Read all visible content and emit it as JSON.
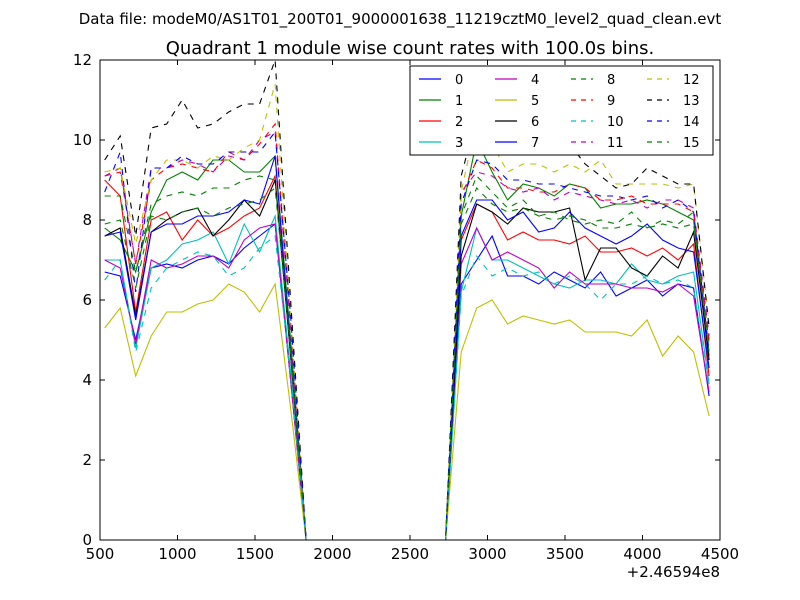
{
  "suptitle": "Data file: modeM0/AS1T01_200T01_9000001638_11219cztM0_level2_quad_clean.evt",
  "chart_data": {
    "type": "line",
    "title": "Quadrant 1 module wise count rates with 100.0s bins.",
    "xlabel": "",
    "ylabel": "",
    "x_offset_label": "+2.46594e8",
    "xlim": [
      500,
      4500
    ],
    "ylim": [
      0,
      12
    ],
    "xticks": [
      500,
      1000,
      1500,
      2000,
      2500,
      3000,
      3500,
      4000,
      4500
    ],
    "yticks": [
      0,
      2,
      4,
      6,
      8,
      10,
      12
    ],
    "grid": false,
    "legend_position": "top-right",
    "x": [
      530,
      630,
      730,
      830,
      930,
      1030,
      1130,
      1230,
      1330,
      1430,
      1530,
      1630,
      1730,
      1830,
      1930,
      2030,
      2130,
      2230,
      2330,
      2430,
      2530,
      2630,
      2730,
      2830,
      2930,
      3030,
      3130,
      3230,
      3330,
      3430,
      3530,
      3630,
      3730,
      3830,
      3930,
      4030,
      4130,
      4230,
      4330,
      4430
    ],
    "series": [
      {
        "name": "0",
        "color": "#0000ff",
        "dash": "solid",
        "values": [
          6.7,
          6.6,
          5.0,
          6.8,
          6.9,
          6.8,
          7.0,
          7.1,
          6.9,
          7.3,
          7.6,
          7.9,
          4.0,
          0,
          0,
          0,
          0,
          0,
          0,
          0,
          0,
          0,
          0,
          6.4,
          7.0,
          7.6,
          6.6,
          6.6,
          6.4,
          6.7,
          6.5,
          6.3,
          6.7,
          6.1,
          6.3,
          6.5,
          6.1,
          6.4,
          6.3,
          3.6
        ]
      },
      {
        "name": "1",
        "color": "#008000",
        "dash": "solid",
        "values": [
          7.8,
          7.5,
          6.7,
          8.2,
          9.0,
          9.2,
          9.0,
          9.5,
          9.5,
          9.2,
          9.2,
          9.6,
          5.0,
          0,
          0,
          0,
          0,
          0,
          0,
          0,
          0,
          0,
          0,
          8.1,
          10.0,
          9.2,
          8.5,
          8.9,
          8.8,
          8.6,
          8.9,
          8.8,
          8.3,
          8.4,
          8.4,
          8.5,
          8.4,
          8.2,
          8.0,
          4.6
        ]
      },
      {
        "name": "2",
        "color": "#ff0000",
        "dash": "solid",
        "values": [
          9.0,
          8.6,
          5.7,
          8.0,
          8.2,
          7.5,
          8.0,
          7.6,
          7.8,
          8.1,
          8.3,
          9.1,
          4.8,
          0,
          0,
          0,
          0,
          0,
          0,
          0,
          0,
          0,
          0,
          7.5,
          8.4,
          8.2,
          7.5,
          7.7,
          7.5,
          7.5,
          7.4,
          7.6,
          7.2,
          7.2,
          7.3,
          7.1,
          7.3,
          7.0,
          7.4,
          4.1
        ]
      },
      {
        "name": "3",
        "color": "#00bfbf",
        "dash": "solid",
        "values": [
          7.0,
          7.0,
          4.8,
          6.8,
          7.0,
          7.4,
          7.5,
          7.7,
          6.9,
          7.9,
          7.2,
          8.1,
          4.2,
          0,
          0,
          0,
          0,
          0,
          0,
          0,
          0,
          0,
          0,
          6.2,
          7.8,
          7.0,
          7.0,
          6.8,
          6.6,
          6.4,
          6.3,
          6.5,
          6.5,
          6.4,
          6.9,
          6.5,
          6.4,
          6.6,
          6.7,
          3.9
        ]
      },
      {
        "name": "4",
        "color": "#bf00bf",
        "dash": "solid",
        "values": [
          7.0,
          6.8,
          4.9,
          7.0,
          6.8,
          6.9,
          7.1,
          7.1,
          6.8,
          7.5,
          7.8,
          7.9,
          4.0,
          0,
          0,
          0,
          0,
          0,
          0,
          0,
          0,
          0,
          0,
          6.9,
          7.8,
          7.0,
          7.2,
          7.0,
          6.8,
          6.3,
          6.7,
          6.4,
          6.4,
          6.4,
          6.3,
          6.3,
          6.2,
          6.4,
          6.1,
          3.7
        ]
      },
      {
        "name": "5",
        "color": "#bfbf00",
        "dash": "solid",
        "values": [
          5.3,
          5.8,
          4.1,
          5.1,
          5.7,
          5.7,
          5.9,
          6.0,
          6.4,
          6.2,
          5.7,
          6.4,
          3.3,
          0,
          0,
          0,
          0,
          0,
          0,
          0,
          0,
          0,
          0,
          4.7,
          5.8,
          6.0,
          5.4,
          5.6,
          5.5,
          5.4,
          5.5,
          5.2,
          5.2,
          5.2,
          5.1,
          5.5,
          4.6,
          5.1,
          4.7,
          3.1
        ]
      },
      {
        "name": "6",
        "color": "#000000",
        "dash": "solid",
        "values": [
          7.6,
          7.8,
          5.6,
          7.7,
          8.0,
          8.2,
          8.3,
          7.6,
          8.0,
          8.5,
          8.1,
          9.0,
          4.6,
          0,
          0,
          0,
          0,
          0,
          0,
          0,
          0,
          0,
          0,
          7.1,
          8.4,
          8.2,
          7.9,
          8.3,
          8.2,
          8.2,
          8.3,
          6.5,
          7.3,
          7.3,
          6.8,
          6.6,
          7.1,
          6.8,
          7.7,
          4.5
        ]
      },
      {
        "name": "7",
        "color": "#0000ff",
        "dash": "solid",
        "values": [
          7.6,
          7.7,
          5.5,
          7.7,
          7.9,
          7.9,
          8.1,
          8.1,
          8.2,
          8.5,
          8.4,
          9.6,
          4.8,
          0,
          0,
          0,
          0,
          0,
          0,
          0,
          0,
          0,
          0,
          7.6,
          8.5,
          8.5,
          8.0,
          8.2,
          7.7,
          7.8,
          8.2,
          7.8,
          7.6,
          7.4,
          7.6,
          7.9,
          7.5,
          7.3,
          7.2,
          4.3
        ]
      },
      {
        "name": "8",
        "color": "#008000",
        "dash": "dash",
        "values": [
          8.6,
          8.6,
          6.7,
          8.4,
          8.6,
          8.7,
          8.6,
          8.8,
          8.8,
          9.0,
          9.1,
          9.0,
          4.8,
          0,
          0,
          0,
          0,
          0,
          0,
          0,
          0,
          0,
          0,
          8.1,
          9.1,
          8.7,
          8.3,
          8.5,
          8.1,
          8.2,
          8.0,
          7.9,
          8.0,
          7.9,
          8.2,
          7.8,
          8.0,
          7.9,
          8.2,
          4.9
        ]
      },
      {
        "name": "9",
        "color": "#ff0000",
        "dash": "dash",
        "values": [
          9.1,
          9.2,
          6.9,
          9.0,
          9.3,
          9.4,
          9.3,
          9.2,
          9.7,
          9.5,
          9.9,
          10.4,
          5.4,
          0,
          0,
          0,
          0,
          0,
          0,
          0,
          0,
          0,
          0,
          8.6,
          9.5,
          9.3,
          8.8,
          8.8,
          8.7,
          8.7,
          8.9,
          8.8,
          8.5,
          8.5,
          8.6,
          8.4,
          8.4,
          8.4,
          8.2,
          5.0
        ]
      },
      {
        "name": "10",
        "color": "#00bfbf",
        "dash": "dash",
        "values": [
          6.5,
          7.0,
          4.7,
          6.3,
          6.8,
          7.0,
          7.2,
          7.1,
          6.6,
          6.8,
          7.3,
          7.6,
          4.1,
          0,
          0,
          0,
          0,
          0,
          0,
          0,
          0,
          0,
          0,
          6.1,
          7.1,
          6.6,
          6.8,
          6.6,
          6.7,
          6.4,
          6.6,
          6.4,
          6.0,
          6.4,
          6.4,
          6.6,
          6.4,
          6.5,
          6.3,
          3.8
        ]
      },
      {
        "name": "11",
        "color": "#bf00bf",
        "dash": "dash",
        "values": [
          9.1,
          9.3,
          6.9,
          9.3,
          9.3,
          9.5,
          9.4,
          9.2,
          9.6,
          9.5,
          10.0,
          10.2,
          5.3,
          0,
          0,
          0,
          0,
          0,
          0,
          0,
          0,
          0,
          0,
          8.7,
          9.2,
          9.1,
          8.8,
          8.7,
          8.8,
          8.5,
          8.7,
          8.6,
          8.5,
          8.4,
          8.5,
          8.3,
          8.5,
          8.5,
          8.3,
          5.1
        ]
      },
      {
        "name": "12",
        "color": "#bfbf00",
        "dash": "dash",
        "values": [
          9.2,
          9.3,
          7.4,
          9.0,
          9.5,
          9.5,
          9.3,
          9.6,
          9.5,
          9.8,
          10.0,
          11.4,
          5.6,
          0,
          0,
          0,
          0,
          0,
          0,
          0,
          0,
          0,
          0,
          8.7,
          10.5,
          9.9,
          9.2,
          9.4,
          9.4,
          9.2,
          9.4,
          9.2,
          9.5,
          8.9,
          8.9,
          8.9,
          8.9,
          8.8,
          8.9,
          5.4
        ]
      },
      {
        "name": "13",
        "color": "#000000",
        "dash": "dash",
        "values": [
          9.5,
          10.1,
          7.6,
          10.3,
          10.4,
          11.0,
          10.3,
          10.4,
          10.7,
          10.9,
          10.9,
          12.0,
          6.0,
          0,
          0,
          0,
          0,
          0,
          0,
          0,
          0,
          0,
          0,
          9.1,
          10.6,
          10.2,
          9.9,
          10.0,
          9.8,
          9.8,
          9.9,
          9.4,
          9.1,
          8.8,
          8.9,
          9.3,
          9.1,
          8.9,
          8.9,
          5.3
        ]
      },
      {
        "name": "14",
        "color": "#0000ff",
        "dash": "dash",
        "values": [
          8.7,
          9.7,
          6.2,
          9.3,
          9.3,
          9.6,
          9.4,
          9.4,
          9.7,
          9.7,
          9.7,
          10.2,
          5.6,
          0,
          0,
          0,
          0,
          0,
          0,
          0,
          0,
          0,
          0,
          8.4,
          9.5,
          9.4,
          9.0,
          9.0,
          8.9,
          8.9,
          8.8,
          8.7,
          8.6,
          8.6,
          8.5,
          8.6,
          8.3,
          8.5,
          8.2,
          4.7
        ]
      },
      {
        "name": "15",
        "color": "#008000",
        "dash": "dash",
        "values": [
          7.9,
          8.0,
          6.3,
          8.1,
          8.0,
          8.2,
          8.3,
          8.1,
          8.3,
          8.4,
          8.5,
          8.8,
          4.7,
          0,
          0,
          0,
          0,
          0,
          0,
          0,
          0,
          0,
          0,
          7.9,
          8.8,
          8.4,
          8.2,
          8.3,
          8.1,
          8.0,
          8.1,
          8.0,
          7.8,
          7.8,
          7.9,
          7.8,
          7.9,
          7.8,
          7.9,
          4.7
        ]
      }
    ]
  }
}
